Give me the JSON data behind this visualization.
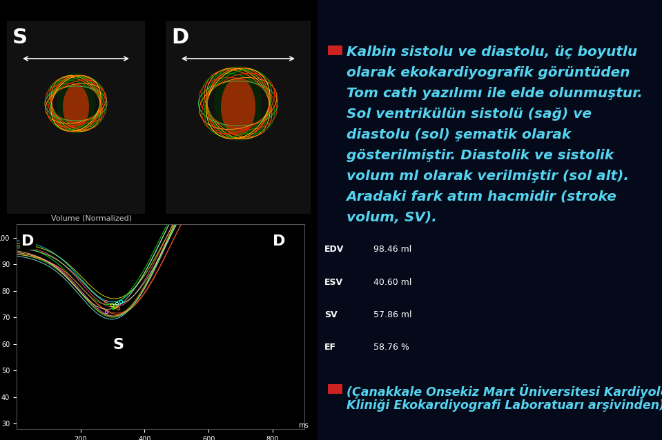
{
  "bg_color": "#050a1a",
  "text_color": "#55d4f0",
  "bullet_color": "#cc2222",
  "main_text_fontsize": 14.5,
  "footer_text_fontsize": 12.5,
  "ecg_label_color": "#ffffff",
  "vol_label": "Volume (Normalized)",
  "vol_label_color": "#cccccc",
  "main_lines": [
    "Kalbin sistolu ve diastolu, üç boyutlu",
    "olarak ekokardiyografik görüntüden",
    "Tom cath yazılımı ile elde olunmuştur.",
    "Sol ventrikülün sistolü (sağ) ve",
    "diastolu (sol) şematik olarak",
    "gösterilmiştir. Diastolik ve sistolik",
    "volum ml olarak verilmiştir (sol alt).",
    "Aradaki fark atım hacmidir (stroke",
    "volum, SV)."
  ],
  "footer_lines": [
    "(Çanakkale Onsekiz Mart Üniversitesi Kardiyoloji",
    "Kliniği Ekokardiyografi Laboratuarı arşivinden)"
  ],
  "meas_texts": [
    [
      "EDV",
      "98.46 ml"
    ],
    [
      "ESV",
      "40.60 ml"
    ],
    [
      "SV",
      "57.86 ml"
    ],
    [
      "EF",
      "58.76 %"
    ]
  ],
  "curve_colors": [
    "#ffff00",
    "#00ffff",
    "#ff8800",
    "#00ff00",
    "#ff4444",
    "#ff88ff",
    "#88ffff",
    "#ffaa00",
    "#44ff44",
    "#ff6688",
    "#aaffaa",
    "#ffddaa"
  ],
  "heart_wire_colors": [
    "#ff4400",
    "#00aa00",
    "#ffaa00",
    "#ff6600",
    "#008800",
    "#cc3300",
    "#44aa44",
    "#ff8800",
    "#ff2200",
    "#009900",
    "#ffcc00",
    "#ff5500"
  ]
}
